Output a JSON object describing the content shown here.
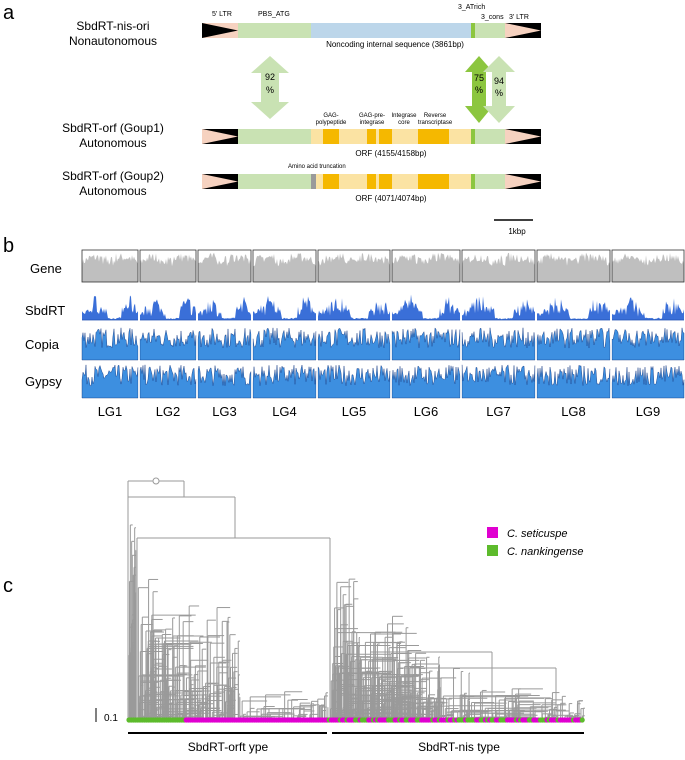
{
  "panel_a": {
    "label": "a",
    "row1": {
      "title": "SbdRT-nis-ori",
      "subtitle": "Nonautonomous",
      "ltr5": "5' LTR",
      "ltr3": "3' LTR",
      "pbs": "PBS_ATG",
      "atrich": "3_ATrich",
      "cons": "3_cons",
      "internal": "Noncoding internal sequence (3861bp)"
    },
    "row2": {
      "title": "SbdRT-orf (Goup1)",
      "subtitle": "Autonomous",
      "orf": "ORF (4155/4158bp)",
      "domains": [
        "GAG-",
        "polypeptide",
        "GAG-pre-",
        "integrase",
        "Integrase",
        "core",
        "Reverse",
        "transcriptase"
      ]
    },
    "row3": {
      "title": "SbdRT-orf (Goup2)",
      "subtitle": "Autonomous",
      "truncation": "Amino acid truncation",
      "orf": "ORF (4071/4074bp)"
    },
    "identity": [
      {
        "value": "92",
        "unit": "%"
      },
      {
        "value": "75",
        "unit": "%"
      },
      {
        "value": "94",
        "unit": "%"
      }
    ],
    "scale": "1kbp",
    "colors": {
      "ltr": "#f6d2c0",
      "flank": "#c9e2b3",
      "internal": "#bcd6ea",
      "orf": "#fbe3a3",
      "domain": "#f5b800",
      "mark": "#8cc63f"
    }
  },
  "panel_b": {
    "label": "b",
    "tracks": [
      "Gene",
      "SbdRT",
      "Copia",
      "Gypsy"
    ],
    "chromosomes": [
      "LG1",
      "LG2",
      "LG3",
      "LG4",
      "LG5",
      "LG6",
      "LG7",
      "LG8",
      "LG9"
    ],
    "colors": {
      "gene": "#bfbfbf",
      "sbdrt": "#3a6fd8",
      "copia": "#3d8fe0",
      "gypsy": "#3d8fe0"
    }
  },
  "panel_c": {
    "label": "c",
    "legend": [
      {
        "name": "C. seticuspe",
        "color": "#e000d0"
      },
      {
        "name": "C. nankingense",
        "color": "#5dbb2c"
      }
    ],
    "scale": "0.1",
    "groups": [
      "SbdRT-orft ype",
      "SbdRT-nis type"
    ],
    "colors": {
      "tree": "#9a9a9a"
    }
  }
}
